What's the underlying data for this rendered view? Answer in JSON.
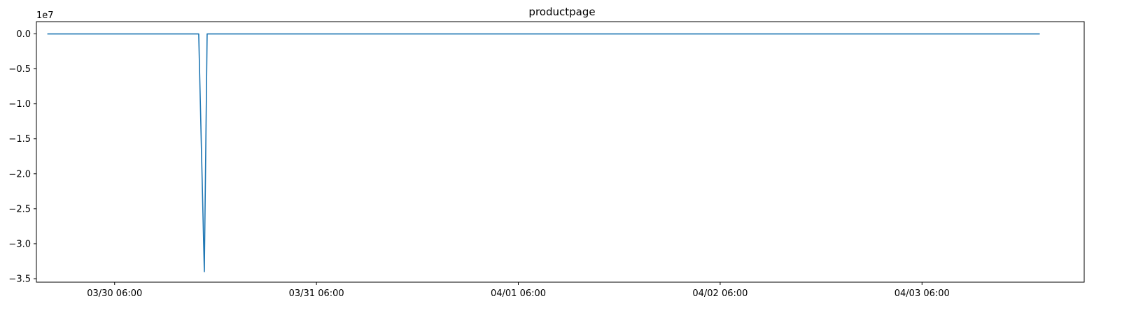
{
  "chart_data": {
    "type": "line",
    "title": "productpage",
    "xlabel": "",
    "ylabel": "",
    "y_offset_label": "1e7",
    "y_scale_factor": 10000000,
    "grid": false,
    "legend": "none",
    "xlim": [
      "2024-03-29T20:42:00",
      "2024-04-04T01:17:00"
    ],
    "ylim": [
      -35500000,
      1750000
    ],
    "x_ticks": [
      {
        "value": "2024-03-30T06:00:00",
        "label": "03/30 06:00"
      },
      {
        "value": "2024-03-31T06:00:00",
        "label": "03/31 06:00"
      },
      {
        "value": "2024-04-01T06:00:00",
        "label": "04/01 06:00"
      },
      {
        "value": "2024-04-02T06:00:00",
        "label": "04/02 06:00"
      },
      {
        "value": "2024-04-03T06:00:00",
        "label": "04/03 06:00"
      }
    ],
    "y_ticks": [
      {
        "value": 0,
        "label": "0.0"
      },
      {
        "value": -5000000,
        "label": "−0.5"
      },
      {
        "value": -10000000,
        "label": "−1.0"
      },
      {
        "value": -15000000,
        "label": "−1.5"
      },
      {
        "value": -20000000,
        "label": "−2.0"
      },
      {
        "value": -25000000,
        "label": "−2.5"
      },
      {
        "value": -30000000,
        "label": "−3.0"
      },
      {
        "value": -35000000,
        "label": "−3.5"
      }
    ],
    "series": [
      {
        "color": "#1f77b4",
        "points": [
          {
            "x": "2024-03-29T22:00:00",
            "y": 0
          },
          {
            "x": "2024-03-30T16:00:00",
            "y": 0
          },
          {
            "x": "2024-03-30T16:40:00",
            "y": -34000000
          },
          {
            "x": "2024-03-30T17:00:00",
            "y": 0
          },
          {
            "x": "2024-04-03T20:00:00",
            "y": 0
          }
        ]
      }
    ]
  }
}
